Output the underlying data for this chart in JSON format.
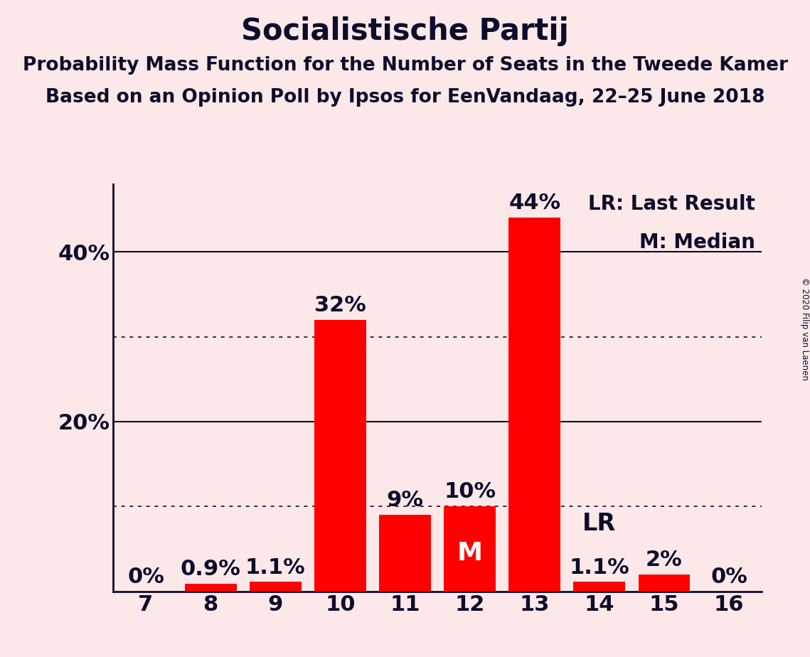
{
  "title": "Socialistische Partij",
  "subtitle1": "Probability Mass Function for the Number of Seats in the Tweede Kamer",
  "subtitle2": "Based on an Opinion Poll by Ipsos for EenVandaag, 22–25 June 2018",
  "copyright": "© 2020 Filip van Laenen",
  "seats": [
    7,
    8,
    9,
    10,
    11,
    12,
    13,
    14,
    15,
    16
  ],
  "probabilities": [
    0.0,
    0.9,
    1.1,
    32.0,
    9.0,
    10.0,
    44.0,
    1.1,
    2.0,
    0.0
  ],
  "bar_color": "#ff0000",
  "background_color": "#fce8e8",
  "label_color": "#0d0d2b",
  "median_seat": 12,
  "last_result_seat": 14,
  "ylim": [
    0,
    48
  ],
  "solid_gridlines": [
    20,
    40
  ],
  "dotted_gridlines": [
    10,
    30
  ],
  "bar_labels": [
    "0%",
    "0.9%",
    "1.1%",
    "32%",
    "9%",
    "10%",
    "44%",
    "1.1%",
    "2%",
    "0%"
  ],
  "legend_text1": "LR: Last Result",
  "legend_text2": "M: Median",
  "title_fontsize": 30,
  "subtitle_fontsize": 19,
  "tick_fontsize": 22,
  "bar_label_fontsize": 22,
  "legend_fontsize": 20
}
